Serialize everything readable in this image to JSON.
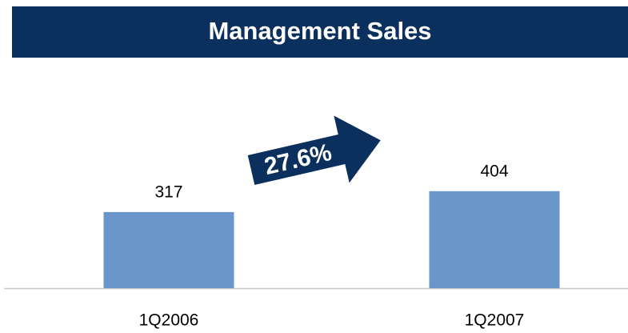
{
  "chart_data": {
    "type": "bar",
    "title": "Management Sales",
    "categories": [
      "1Q2006",
      "1Q2007"
    ],
    "values": [
      317,
      404
    ],
    "color": "#6a96cc",
    "annotation": "27.6%",
    "ylim": [
      0,
      1200
    ]
  }
}
